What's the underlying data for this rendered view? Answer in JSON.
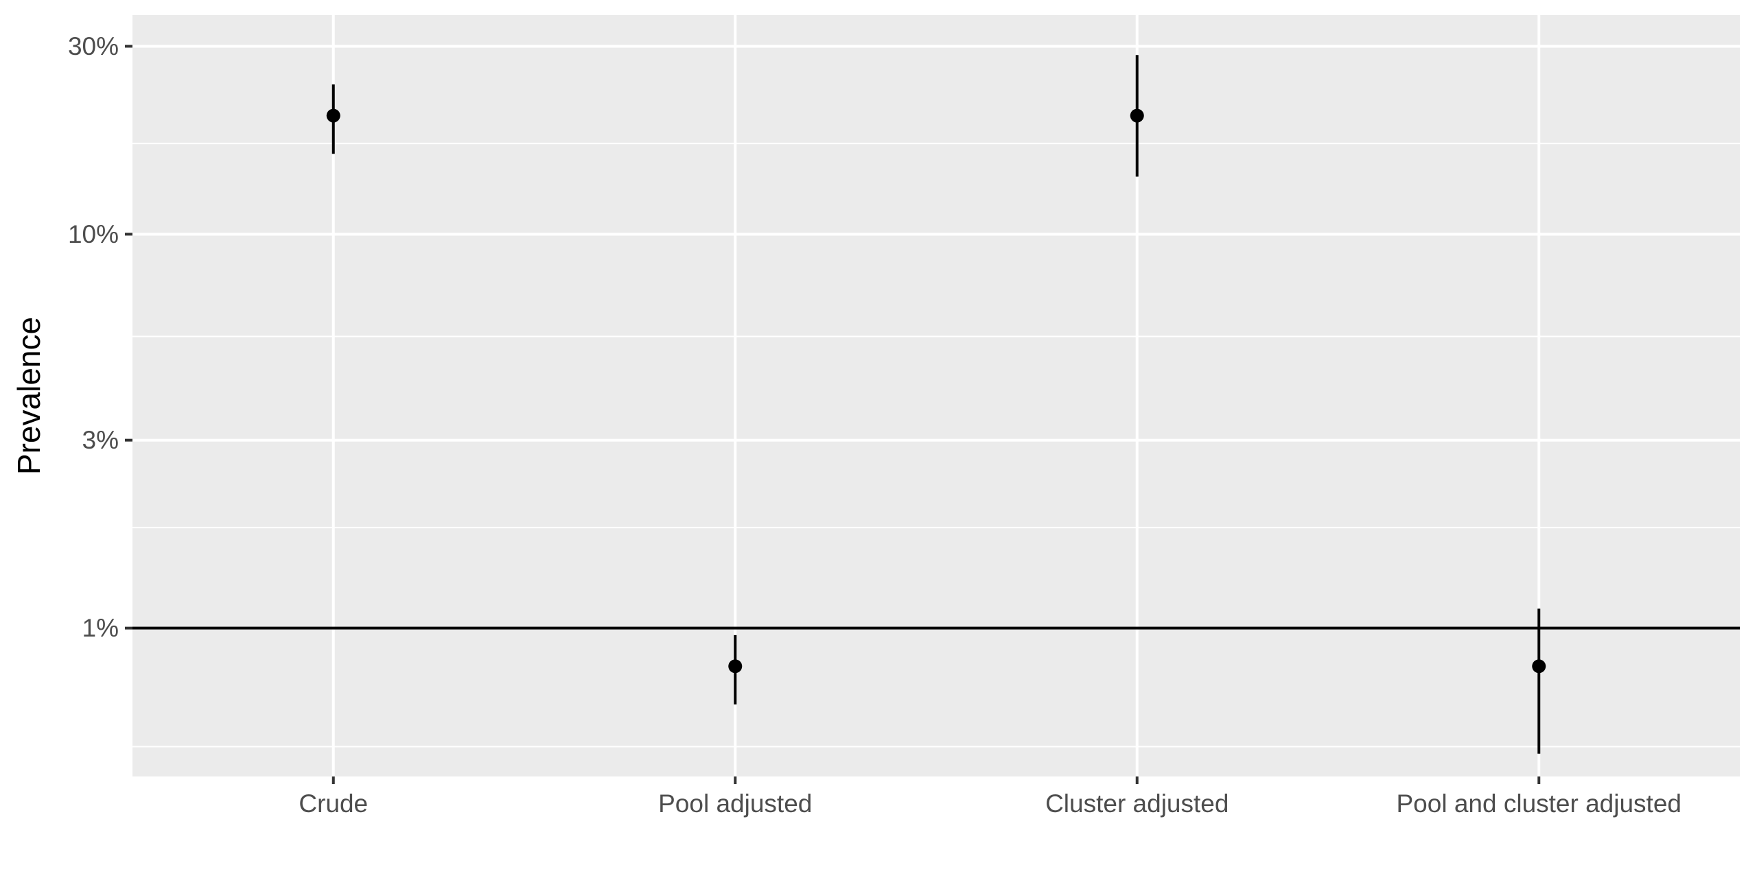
{
  "chart_data": {
    "type": "scatter",
    "title": "",
    "xlabel": "",
    "ylabel": "Prevalence",
    "y_scale": "log10",
    "ylim": [
      0.0042,
      0.36
    ],
    "y_ticks": [
      {
        "value": 0.01,
        "label": "1%"
      },
      {
        "value": 0.03,
        "label": "3%"
      },
      {
        "value": 0.1,
        "label": "10%"
      },
      {
        "value": 0.3,
        "label": "30%"
      }
    ],
    "y_minor_gridlines": [
      0.005,
      0.018,
      0.055,
      0.17
    ],
    "categories": [
      "Crude",
      "Pool adjusted",
      "Cluster adjusted",
      "Pool and cluster adjusted"
    ],
    "series": [
      {
        "points": [
          {
            "category": "Crude",
            "estimate": 0.2,
            "lower": 0.16,
            "upper": 0.24
          },
          {
            "category": "Pool adjusted",
            "estimate": 0.008,
            "lower": 0.0064,
            "upper": 0.0096
          },
          {
            "category": "Cluster adjusted",
            "estimate": 0.2,
            "lower": 0.14,
            "upper": 0.285
          },
          {
            "category": "Pool and cluster adjusted",
            "estimate": 0.008,
            "lower": 0.0048,
            "upper": 0.0112
          }
        ]
      }
    ],
    "reference_line": {
      "value": 0.01
    },
    "grid": true,
    "legend": "none",
    "colors": {
      "panel_background": "#ebebeb",
      "gridline": "#ffffff",
      "point": "#000000",
      "reference_line": "#000000",
      "tick_text": "#4d4d4d",
      "axis_title": "#000000"
    }
  }
}
